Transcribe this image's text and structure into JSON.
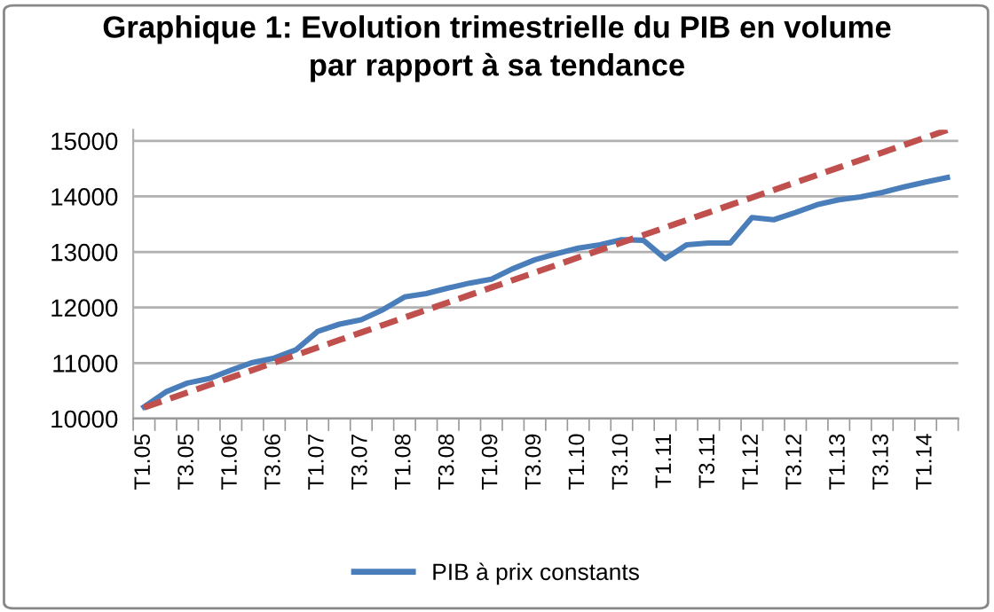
{
  "chart_data": {
    "type": "line",
    "title": "Graphique 1: Evolution trimestrielle du PIB en volume\npar rapport à sa tendance",
    "categories": [
      "T1.05",
      null,
      "T3.05",
      null,
      "T1.06",
      null,
      "T3.06",
      null,
      "T1.07",
      null,
      "T3.07",
      null,
      "T1.08",
      null,
      "T3.08",
      null,
      "T1.09",
      null,
      "T3.09",
      null,
      "T1.10",
      null,
      "T3.10",
      null,
      "T1.11",
      null,
      "T3.11",
      null,
      "T1.12",
      null,
      "T3.12",
      null,
      "T1.13",
      null,
      "T3.13",
      null,
      "T1.14",
      null
    ],
    "series": [
      {
        "name": "PIB à prix constants",
        "color": "#4a7ebb",
        "line_style": "solid",
        "values": [
          10210,
          10480,
          10640,
          10720,
          10870,
          11010,
          11090,
          11240,
          11570,
          11700,
          11780,
          11960,
          12190,
          12250,
          12350,
          12440,
          12510,
          12700,
          12860,
          12970,
          13070,
          13130,
          13220,
          13210,
          12880,
          13130,
          13160,
          13160,
          13620,
          13580,
          13710,
          13850,
          13940,
          13990,
          14070,
          14170,
          14260,
          14340
        ]
      },
      {
        "color": "#c0504d",
        "line_style": "dashed",
        "values": [
          10200,
          10335,
          10470,
          10605,
          10740,
          10875,
          11010,
          11145,
          11280,
          11415,
          11550,
          11685,
          11820,
          11955,
          12090,
          12225,
          12360,
          12495,
          12630,
          12765,
          12900,
          13035,
          13170,
          13305,
          13440,
          13575,
          13710,
          13845,
          13980,
          14115,
          14250,
          14385,
          14520,
          14655,
          14790,
          14925,
          15060,
          15195
        ]
      }
    ],
    "ylim": [
      10000,
      15200
    ],
    "yticks": [
      10000,
      11000,
      12000,
      13000,
      14000,
      15000
    ],
    "grid": "y",
    "legend": "bottom",
    "marker": "none"
  }
}
